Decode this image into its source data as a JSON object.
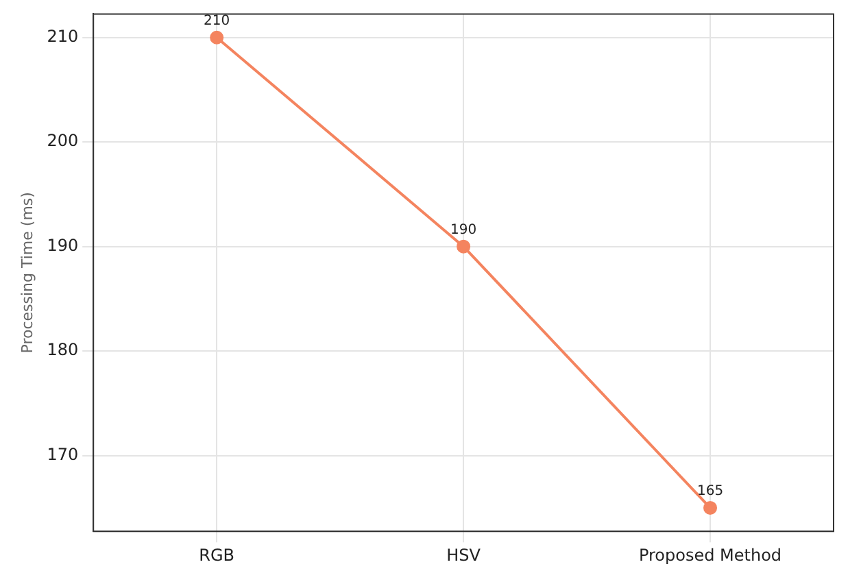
{
  "chart_data": {
    "type": "line",
    "ylabel": "Processing Time (ms)",
    "categories": [
      "RGB",
      "HSV",
      "Proposed Method"
    ],
    "series": [
      {
        "color": "#f4845f",
        "values": [
          210,
          190,
          165
        ]
      }
    ],
    "ylim": [
      162.75,
      212.25
    ],
    "yticks": [
      170,
      180,
      190,
      200,
      210
    ],
    "grid": true,
    "marker": "circle",
    "line_style": "solid",
    "data_labels": true,
    "legend": false
  }
}
